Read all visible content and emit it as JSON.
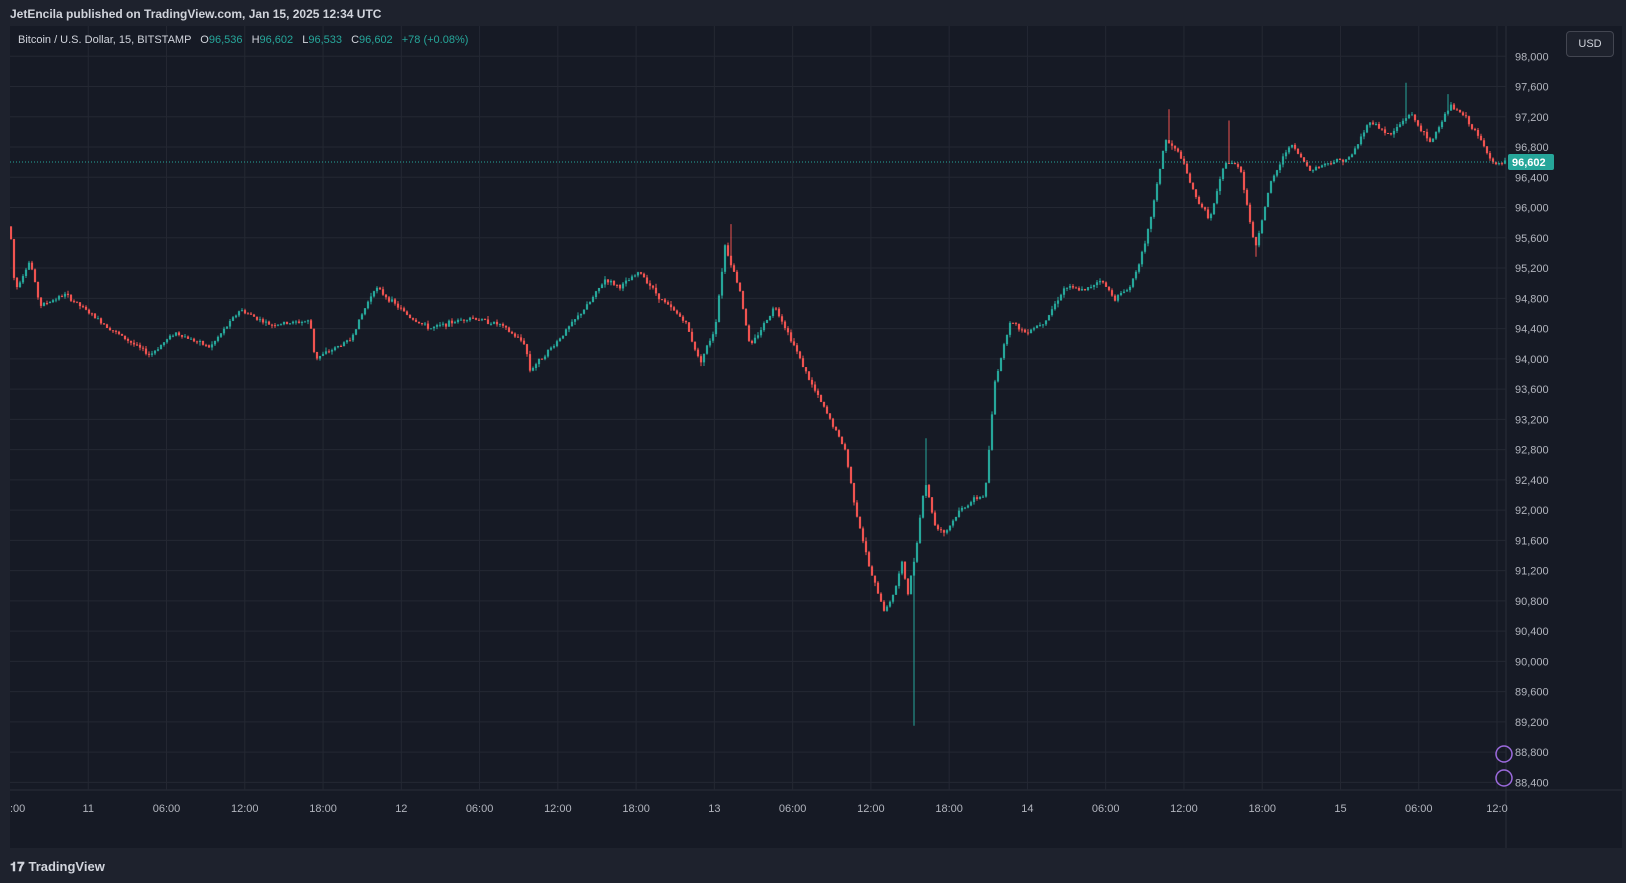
{
  "header": {
    "publisher_line": "JetEncila published on TradingView.com, Jan 15, 2025 12:34 UTC"
  },
  "legend": {
    "symbol": "Bitcoin / U.S. Dollar, 15, BITSTAMP",
    "open_label": "O",
    "open": "96,536",
    "high_label": "H",
    "high": "96,602",
    "low_label": "L",
    "low": "96,533",
    "close_label": "C",
    "close": "96,602",
    "change": "+78 (+0.08%)"
  },
  "currency_button": "USD",
  "footer": {
    "brand": "TradingView"
  },
  "colors": {
    "up": "#26a69a",
    "down": "#ef5350",
    "background": "#161a25",
    "grid": "#242833",
    "price_tag": "#26a69a"
  },
  "chart_data": {
    "type": "candlestick",
    "interval_minutes": 15,
    "y_ticks": [
      98000,
      97600,
      97200,
      96800,
      96400,
      96000,
      95600,
      95200,
      94800,
      94400,
      94000,
      93600,
      93200,
      92800,
      92400,
      92000,
      91600,
      91200,
      90800,
      90400,
      90000,
      89600,
      89200,
      88800,
      88400
    ],
    "ylim": [
      88300,
      98400
    ],
    "last_price": 96602,
    "last_price_label": "96,602",
    "x_ticks": [
      ":00",
      "11",
      "06:00",
      "12:00",
      "18:00",
      "12",
      "06:00",
      "12:00",
      "18:00",
      "13",
      "06:00",
      "12:00",
      "18:00",
      "14",
      "06:00",
      "12:00",
      "18:00",
      "15",
      "06:00",
      "12:0"
    ],
    "price_path": [
      {
        "x": 0,
        "y": 95750
      },
      {
        "x": 5,
        "y": 94900
      },
      {
        "x": 20,
        "y": 95300
      },
      {
        "x": 30,
        "y": 94700
      },
      {
        "x": 55,
        "y": 94850
      },
      {
        "x": 80,
        "y": 94600
      },
      {
        "x": 100,
        "y": 94400
      },
      {
        "x": 140,
        "y": 94050
      },
      {
        "x": 165,
        "y": 94350
      },
      {
        "x": 200,
        "y": 94150
      },
      {
        "x": 230,
        "y": 94650
      },
      {
        "x": 260,
        "y": 94450
      },
      {
        "x": 300,
        "y": 94500
      },
      {
        "x": 305,
        "y": 94000
      },
      {
        "x": 340,
        "y": 94250
      },
      {
        "x": 365,
        "y": 94950
      },
      {
        "x": 400,
        "y": 94550
      },
      {
        "x": 420,
        "y": 94400
      },
      {
        "x": 460,
        "y": 94550
      },
      {
        "x": 490,
        "y": 94450
      },
      {
        "x": 515,
        "y": 94200
      },
      {
        "x": 520,
        "y": 93850
      },
      {
        "x": 545,
        "y": 94200
      },
      {
        "x": 580,
        "y": 94750
      },
      {
        "x": 595,
        "y": 95050
      },
      {
        "x": 610,
        "y": 94950
      },
      {
        "x": 630,
        "y": 95150
      },
      {
        "x": 650,
        "y": 94800
      },
      {
        "x": 675,
        "y": 94500
      },
      {
        "x": 690,
        "y": 93950
      },
      {
        "x": 705,
        "y": 94400
      },
      {
        "x": 715,
        "y": 95500
      },
      {
        "x": 730,
        "y": 94900
      },
      {
        "x": 740,
        "y": 94150
      },
      {
        "x": 765,
        "y": 94700
      },
      {
        "x": 785,
        "y": 94150
      },
      {
        "x": 800,
        "y": 93700
      },
      {
        "x": 820,
        "y": 93200
      },
      {
        "x": 835,
        "y": 92800
      },
      {
        "x": 845,
        "y": 92050
      },
      {
        "x": 860,
        "y": 91200
      },
      {
        "x": 875,
        "y": 90650
      },
      {
        "x": 885,
        "y": 90950
      },
      {
        "x": 892,
        "y": 91300
      },
      {
        "x": 898,
        "y": 90900
      },
      {
        "x": 905,
        "y": 91400
      },
      {
        "x": 915,
        "y": 92400
      },
      {
        "x": 925,
        "y": 91800
      },
      {
        "x": 935,
        "y": 91700
      },
      {
        "x": 950,
        "y": 92000
      },
      {
        "x": 965,
        "y": 92150
      },
      {
        "x": 975,
        "y": 92200
      },
      {
        "x": 985,
        "y": 93700
      },
      {
        "x": 1000,
        "y": 94500
      },
      {
        "x": 1015,
        "y": 94350
      },
      {
        "x": 1035,
        "y": 94500
      },
      {
        "x": 1055,
        "y": 94950
      },
      {
        "x": 1075,
        "y": 94900
      },
      {
        "x": 1090,
        "y": 95050
      },
      {
        "x": 1105,
        "y": 94800
      },
      {
        "x": 1120,
        "y": 94950
      },
      {
        "x": 1135,
        "y": 95500
      },
      {
        "x": 1145,
        "y": 96150
      },
      {
        "x": 1155,
        "y": 96900
      },
      {
        "x": 1170,
        "y": 96700
      },
      {
        "x": 1185,
        "y": 96150
      },
      {
        "x": 1200,
        "y": 95850
      },
      {
        "x": 1215,
        "y": 96600
      },
      {
        "x": 1230,
        "y": 96550
      },
      {
        "x": 1245,
        "y": 95450
      },
      {
        "x": 1260,
        "y": 96300
      },
      {
        "x": 1280,
        "y": 96850
      },
      {
        "x": 1300,
        "y": 96500
      },
      {
        "x": 1320,
        "y": 96600
      },
      {
        "x": 1340,
        "y": 96650
      },
      {
        "x": 1360,
        "y": 97150
      },
      {
        "x": 1380,
        "y": 96950
      },
      {
        "x": 1400,
        "y": 97250
      },
      {
        "x": 1420,
        "y": 96850
      },
      {
        "x": 1440,
        "y": 97350
      },
      {
        "x": 1455,
        "y": 97200
      },
      {
        "x": 1470,
        "y": 96900
      },
      {
        "x": 1485,
        "y": 96550
      },
      {
        "x": 1496,
        "y": 96602
      }
    ],
    "spikes": [
      {
        "x": 722,
        "high": 95780
      },
      {
        "x": 905,
        "low": 89150
      },
      {
        "x": 915,
        "high": 92950
      },
      {
        "x": 1158,
        "high": 97300
      },
      {
        "x": 1218,
        "high": 97150
      },
      {
        "x": 1245,
        "low": 95350
      },
      {
        "x": 1396,
        "high": 97650
      },
      {
        "x": 1438,
        "high": 97500
      }
    ]
  }
}
